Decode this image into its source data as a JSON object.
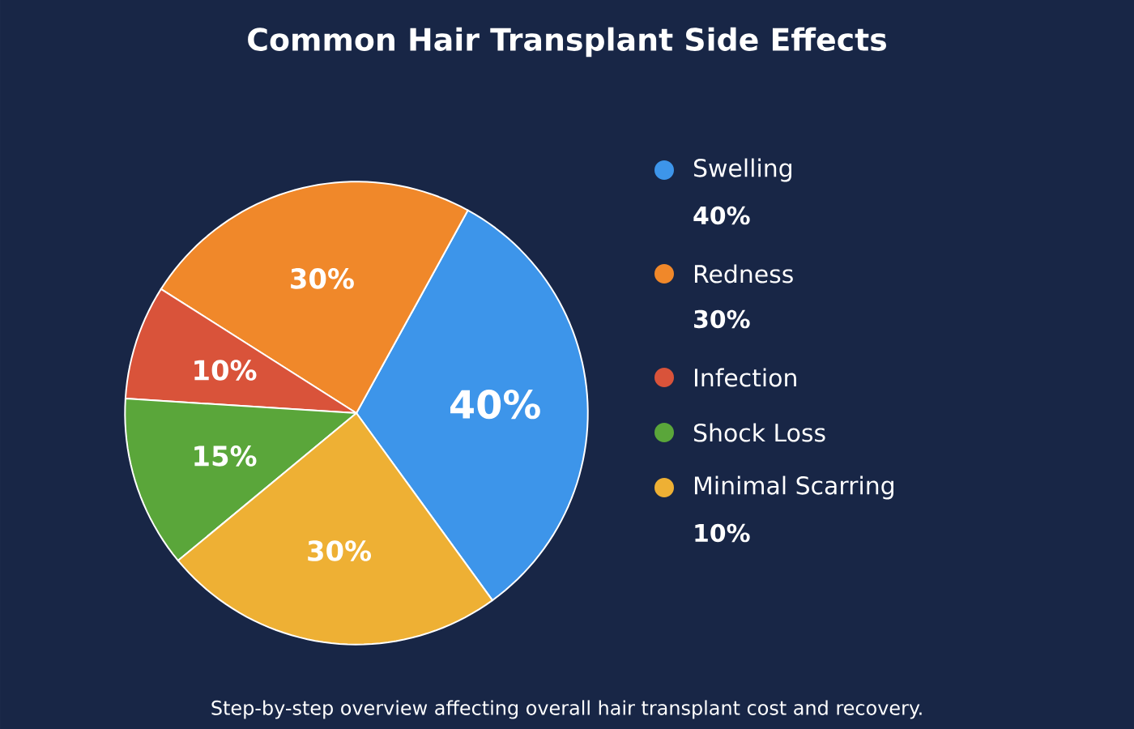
{
  "chart_data": {
    "type": "pie",
    "title": "Common Hair Transplant Side Effects",
    "categories": [
      "Swelling",
      "Redness",
      "Infection",
      "Shock Loss",
      "Minimal Scarring"
    ],
    "values": [
      40,
      30,
      10,
      15,
      30
    ],
    "colors": [
      "#3d95ea",
      "#f0882a",
      "#d9533a",
      "#5aa63a",
      "#eeb034"
    ],
    "value_labels": [
      "40%",
      "30%",
      "10%",
      "15%",
      "30%"
    ],
    "legend": "right",
    "annotations": [
      "40%",
      "30%",
      "10%",
      "Step-by-step overview affecting overall hair transplant cost and recovery."
    ]
  }
}
